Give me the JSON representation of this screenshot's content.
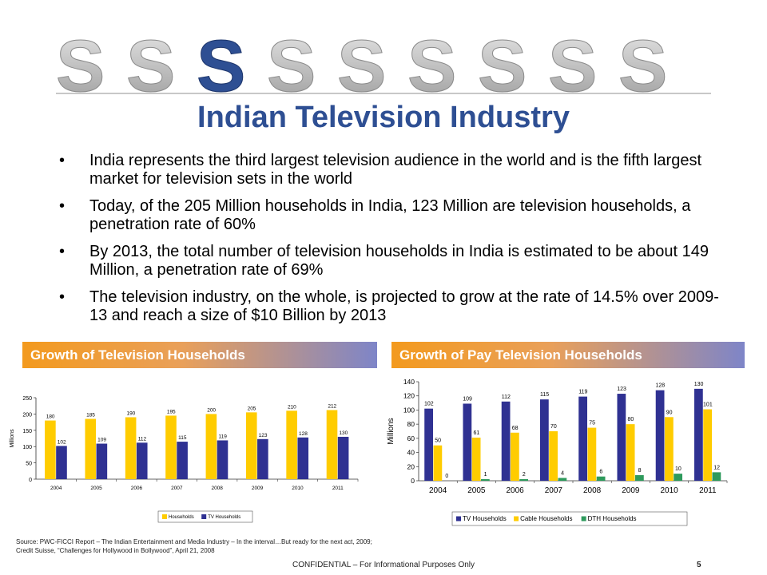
{
  "title": "Indian Television Industry",
  "bullets": [
    "India represents the third largest television audience in the world and is the fifth largest market for television sets in the world",
    "Today, of the 205 Million households in India, 123 Million are television households, a penetration rate of 60%",
    "By 2013, the total number of television households in India is estimated to be about 149 Million, a penetration rate of 69%",
    "The television industry, on the whole, is projected to grow at the rate of 14.5% over 2009-13 and reach a size of $10 Billion by 2013"
  ],
  "sections": {
    "left_header": "Growth of Television Households",
    "right_header": "Growth of Pay Television Households"
  },
  "colors": {
    "title": "#2e4f93",
    "tv": "#2f3192",
    "households": "#ffcc00",
    "cable": "#ffcc00",
    "dth": "#2e9a5c"
  },
  "chart_data": [
    {
      "type": "bar",
      "categories": [
        "2004",
        "2005",
        "2006",
        "2007",
        "2008",
        "2009",
        "2010",
        "2011"
      ],
      "series": [
        {
          "name": "Households",
          "values": [
            180,
            185,
            190,
            195,
            200,
            205,
            210,
            212
          ]
        },
        {
          "name": "TV Households",
          "values": [
            102,
            109,
            112,
            115,
            119,
            123,
            128,
            130
          ]
        }
      ],
      "title": "Growth of Television Households",
      "xlabel": "",
      "ylabel": "Millions",
      "ylim": [
        0,
        250
      ],
      "yticks": [
        0,
        50,
        100,
        150,
        200,
        250
      ],
      "legend": "bottom"
    },
    {
      "type": "bar",
      "categories": [
        "2004",
        "2005",
        "2006",
        "2007",
        "2008",
        "2009",
        "2010",
        "2011"
      ],
      "series": [
        {
          "name": "TV Households",
          "values": [
            102,
            109,
            112,
            115,
            119,
            123,
            128,
            130
          ]
        },
        {
          "name": "Cable Households",
          "values": [
            50,
            61,
            68,
            70,
            75,
            80,
            90,
            101
          ]
        },
        {
          "name": "DTH Households",
          "values": [
            0,
            1,
            2,
            4,
            6,
            8,
            10,
            12
          ]
        }
      ],
      "title": "Growth of Pay Television Households",
      "xlabel": "",
      "ylabel": "Millions",
      "ylim": [
        0,
        140
      ],
      "yticks": [
        0,
        20,
        40,
        60,
        80,
        100,
        120,
        140
      ],
      "legend": "bottom"
    }
  ],
  "source": [
    "Source: PWC-FICCI Report – The Indian Entertainment and Media Industry – In the interval…But ready for the next act, 2009;",
    "Credit Suisse, “Challenges for Hollywood in Bollywood”, April 21, 2008"
  ],
  "footer": "CONFIDENTIAL – For Informational Purposes Only",
  "page_number": "5"
}
